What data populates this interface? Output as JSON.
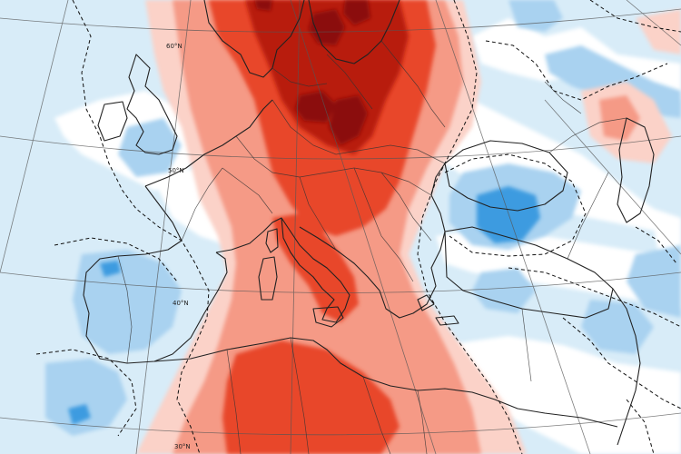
{
  "map": {
    "lat_labels": [
      "60°N",
      "50°N",
      "40°N",
      "30°N"
    ],
    "colors": {
      "strong_warm": "#e8472c",
      "very_strong_warm": "#b81c10",
      "extreme_warm": "#8b0e08",
      "moderate_warm": "#f59a86",
      "light_warm": "#fbd2c8",
      "neutral": "#ffffff",
      "light_cool": "#d8ecf8",
      "moderate_cool": "#a9d2f0",
      "strong_cool": "#3d9be0"
    }
  }
}
